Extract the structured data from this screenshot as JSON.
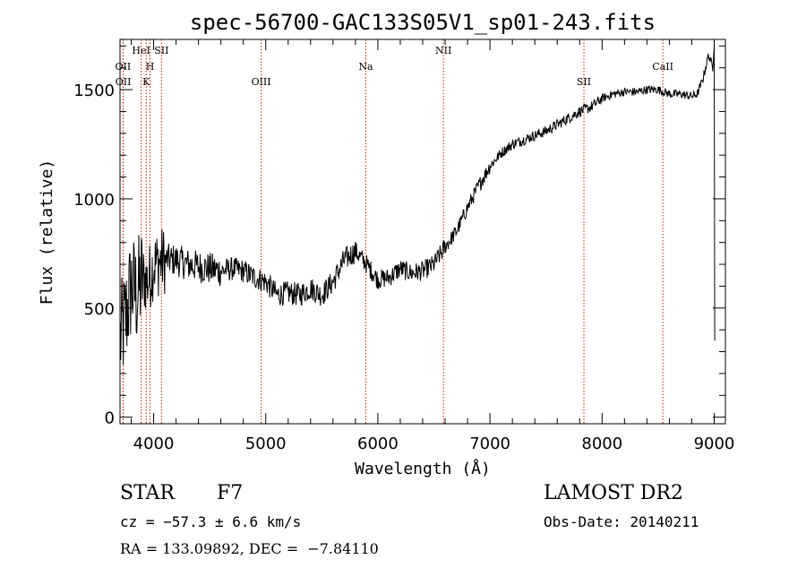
{
  "chart_data": {
    "type": "line",
    "title": "spec-56700-GAC133S05V1_sp01-243.fits",
    "xlabel": "Wavelength (Å)",
    "ylabel": "Flux (relative)",
    "xlim": [
      3700,
      9100
    ],
    "ylim": [
      -30,
      1730
    ],
    "x_ticks": [
      4000,
      5000,
      6000,
      7000,
      8000,
      9000
    ],
    "y_ticks": [
      0,
      500,
      1000,
      1500
    ],
    "grid": false,
    "series": [
      {
        "x": [
          3700,
          3750,
          3800,
          3850,
          3900,
          3950,
          4000,
          4100,
          4200,
          4300,
          4400,
          4500,
          4600,
          4700,
          4800,
          4900,
          5000,
          5100,
          5200,
          5300,
          5400,
          5500,
          5600,
          5700,
          5800,
          5900,
          6000,
          6100,
          6200,
          6300,
          6400,
          6500,
          6600,
          6700,
          6800,
          6900,
          7000,
          7100,
          7200,
          7300,
          7400,
          7500,
          7600,
          7700,
          7800,
          7900,
          8000,
          8100,
          8200,
          8300,
          8400,
          8500,
          8600,
          8700,
          8800,
          8850,
          8900,
          8950,
          9000
        ],
        "y": [
          350,
          450,
          600,
          560,
          640,
          620,
          700,
          720,
          720,
          700,
          690,
          680,
          670,
          680,
          670,
          640,
          620,
          560,
          570,
          560,
          590,
          560,
          620,
          720,
          760,
          700,
          630,
          640,
          680,
          660,
          670,
          700,
          780,
          850,
          960,
          1060,
          1150,
          1210,
          1250,
          1270,
          1290,
          1310,
          1340,
          1370,
          1400,
          1420,
          1460,
          1480,
          1490,
          1490,
          1500,
          1500,
          1480,
          1480,
          1470,
          1480,
          1550,
          1660,
          1580
        ]
      }
    ],
    "lines": [
      {
        "label": "OII",
        "x": 3727,
        "row": 1
      },
      {
        "label": "OII",
        "x": 3729,
        "row": 2
      },
      {
        "label": "HeI",
        "x": 3889,
        "row": 0
      },
      {
        "label": "H",
        "x": 3968,
        "row": 1
      },
      {
        "label": "K",
        "x": 3934,
        "row": 2
      },
      {
        "label": "SII",
        "x": 4070,
        "row": 0
      },
      {
        "label": "OIII",
        "x": 4959,
        "row": 2
      },
      {
        "label": "Na",
        "x": 5893,
        "row": 1
      },
      {
        "label": "NII",
        "x": 6585,
        "row": 0
      },
      {
        "label": "SII",
        "x": 7838,
        "row": 2
      },
      {
        "label": "CaII",
        "x": 8542,
        "row": 1
      }
    ]
  },
  "info": {
    "class": "STAR",
    "subclass": "F7",
    "survey": "LAMOST DR2",
    "cz": "cz = −57.3 ± 6.6 km/s",
    "obs_date": "Obs-Date: 20140211",
    "radec": "RA = 133.09892, DEC =  −7.84110"
  }
}
